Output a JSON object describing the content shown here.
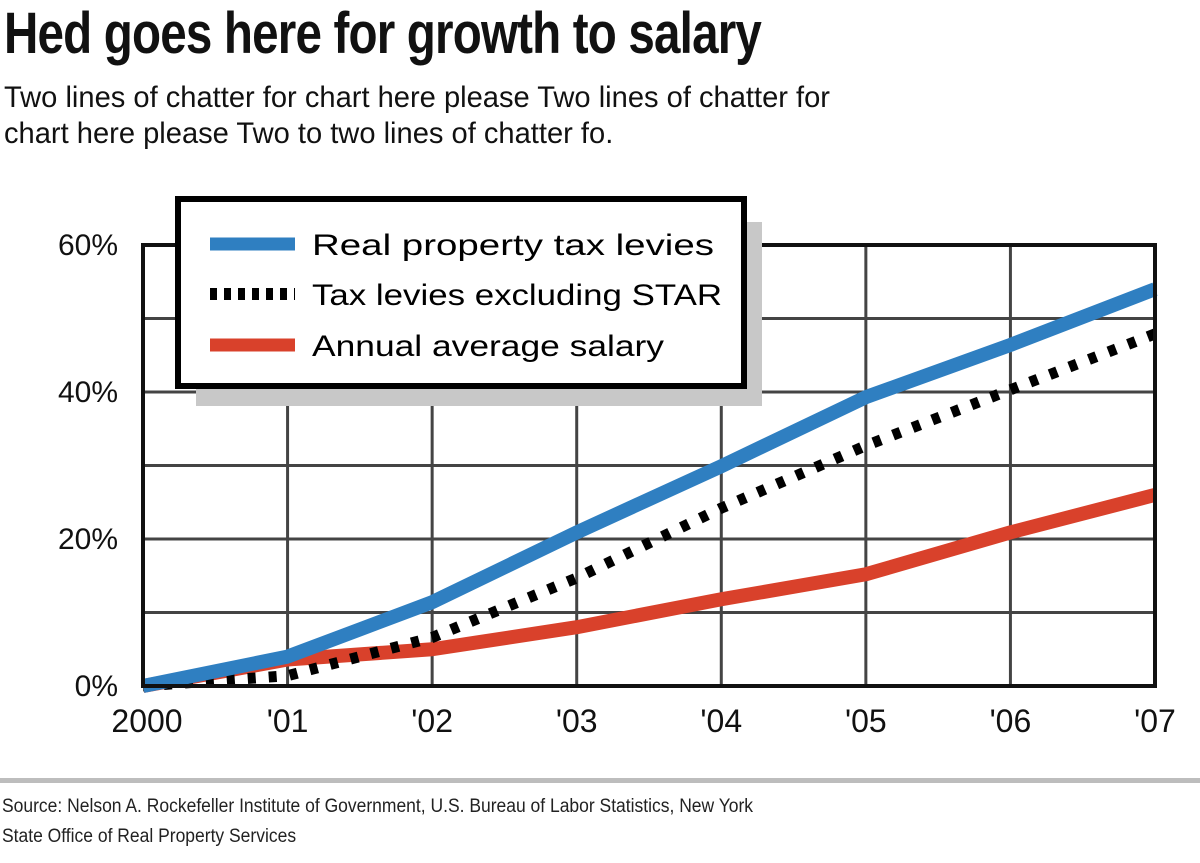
{
  "header": {
    "title": "Hed goes here for growth to salary",
    "subtitle_lines": [
      "Two lines of chatter for chart here please Two lines of chatter for",
      "chart here please Two to two lines of chatter fo."
    ]
  },
  "source": {
    "lines": [
      "Source: Nelson A. Rockefeller Institute of Government, U.S. Bureau of Labor Statistics, New York",
      "State Office of Real Property Services"
    ]
  },
  "chart_data": {
    "type": "line",
    "title": "",
    "xlabel": "",
    "ylabel": "",
    "categories": [
      "2000",
      "'01",
      "'02",
      "'03",
      "'04",
      "'05",
      "'06",
      "'07"
    ],
    "ylim": [
      0,
      60
    ],
    "y_ticks": [
      0,
      20,
      40,
      60
    ],
    "y_tick_labels": [
      "0%",
      "20%",
      "40%",
      "60%"
    ],
    "y_gridlines": [
      0,
      10,
      20,
      30,
      40,
      50,
      60
    ],
    "grid": true,
    "legend_position": "top-left",
    "series": [
      {
        "name": "Real property tax levies",
        "color": "#2f7fc1",
        "style": "solid",
        "values": [
          0,
          4,
          11.4,
          20.9,
          29.9,
          39.3,
          46.4,
          54
        ]
      },
      {
        "name": "Tax levies excluding STAR",
        "color": "#000000",
        "style": "dotted",
        "values": [
          0,
          1.4,
          6.6,
          14.7,
          24.2,
          32.7,
          40.3,
          47.9
        ]
      },
      {
        "name": "Annual average salary",
        "color": "#d9412b",
        "style": "solid",
        "values": [
          0,
          3.6,
          5,
          8,
          11.8,
          15.2,
          20.9,
          26
        ]
      }
    ]
  }
}
